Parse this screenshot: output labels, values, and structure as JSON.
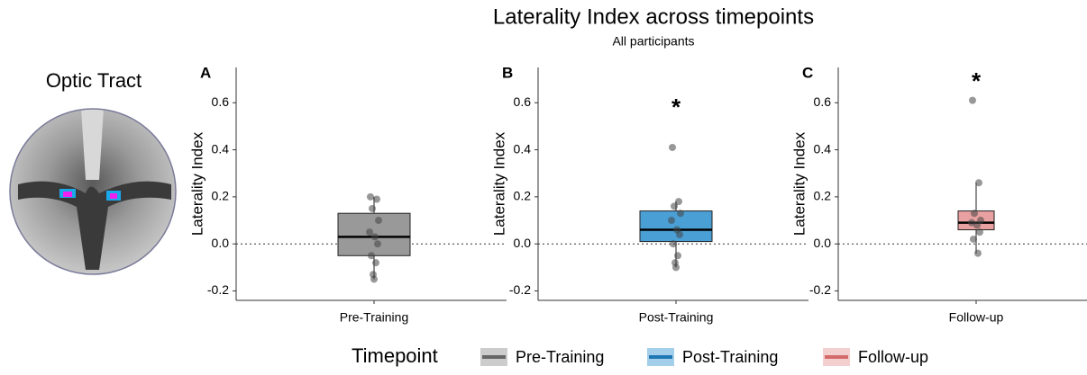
{
  "figure": {
    "title": "Laterality Index across timepoints",
    "subtitle": "All participants"
  },
  "image": {
    "label": "Optic Tract"
  },
  "legend": {
    "title": "Timepoint"
  },
  "chart_data": [
    {
      "type": "box",
      "panel": "A",
      "categories": [
        "Pre-Training"
      ],
      "y_label": "Laterality Index",
      "color": "#999999",
      "legend_color": "#666666",
      "box": {
        "min": -0.15,
        "q1": -0.05,
        "median": 0.03,
        "q3": 0.13,
        "max": 0.2
      },
      "points": [
        0.2,
        0.19,
        0.15,
        0.1,
        0.05,
        0.03,
        0.0,
        -0.05,
        -0.08,
        -0.13,
        -0.15
      ],
      "reference_line": 0,
      "ylim": [
        -0.24,
        0.75
      ],
      "yticks": [
        -0.2,
        {
          "value": 0,
          "label": "0.0"
        },
        0.2,
        0.4,
        0.6
      ]
    },
    {
      "type": "box",
      "panel": "B",
      "categories": [
        "Post-Training"
      ],
      "y_label": "Laterality Index",
      "color": "#4a9fd5",
      "legend_color": "#1f78b4",
      "box": {
        "min": -0.1,
        "q1": 0.01,
        "median": 0.06,
        "q3": 0.14,
        "max": 0.18
      },
      "points": [
        0.41,
        0.18,
        0.16,
        0.13,
        0.1,
        0.06,
        0.04,
        0.0,
        -0.05,
        -0.08,
        -0.1
      ],
      "annotation": "*",
      "reference_line": 0,
      "ylim": [
        -0.24,
        0.75
      ],
      "yticks": [
        -0.2,
        {
          "value": 0,
          "label": "0.0"
        },
        0.2,
        0.4,
        0.6
      ]
    },
    {
      "type": "box",
      "panel": "C",
      "categories": [
        "Follow-up"
      ],
      "y_label": "Laterality Index",
      "color": "#e8a0a0",
      "legend_color": "#d46a6a",
      "box": {
        "min": -0.04,
        "q1": 0.06,
        "median": 0.09,
        "q3": 0.14,
        "max": 0.26
      },
      "points": [
        0.61,
        0.26,
        0.13,
        0.1,
        0.09,
        0.08,
        0.05,
        0.02,
        -0.04
      ],
      "annotation": "*",
      "reference_line": 0,
      "ylim": [
        -0.24,
        0.75
      ],
      "yticks": [
        -0.2,
        {
          "value": 0,
          "label": "0.0"
        },
        0.2,
        0.4,
        0.6
      ]
    }
  ]
}
